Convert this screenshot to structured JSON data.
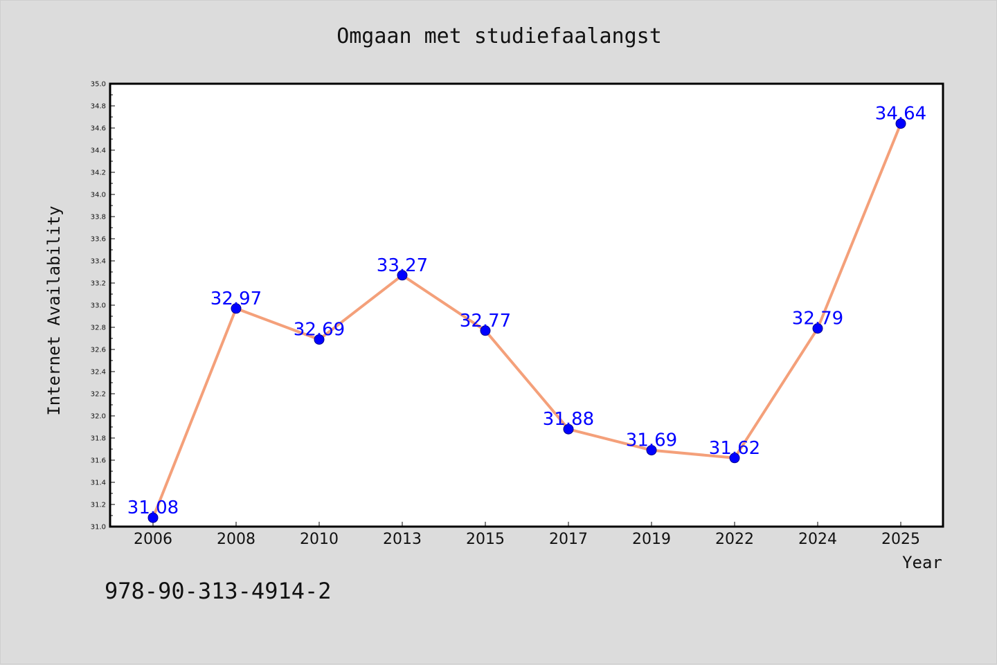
{
  "chart_data": {
    "type": "line",
    "title": "Omgaan met studiefaalangst",
    "xlabel": "Year",
    "ylabel": "Internet Availability",
    "categories": [
      "2006",
      "2008",
      "2010",
      "2013",
      "2015",
      "2017",
      "2019",
      "2022",
      "2024",
      "2025"
    ],
    "series": [
      {
        "values": [
          31.08,
          32.97,
          32.69,
          33.27,
          32.77,
          31.88,
          31.69,
          31.62,
          32.79,
          34.64
        ],
        "labels": [
          "31.08",
          "32.97",
          "32.69",
          "33.27",
          "32.77",
          "31.88",
          "31.69",
          "31.62",
          "32.79",
          "34.64"
        ]
      }
    ],
    "ylim": [
      31.0,
      35.0
    ],
    "yticks": [
      "31.0",
      "31.2",
      "31.4",
      "31.6",
      "31.8",
      "32.0",
      "32.2",
      "32.4",
      "32.6",
      "32.8",
      "33.0",
      "33.2",
      "33.4",
      "33.6",
      "33.8",
      "34.0",
      "34.2",
      "34.4",
      "34.6",
      "34.8",
      "35.0"
    ],
    "grid": false,
    "line_color": "#f4a07a",
    "marker_color": "#0000ff",
    "label_color": "#0000ff",
    "background": "#dcdcdc",
    "plot_background": "#ffffff"
  },
  "footer": {
    "isbn": "978-90-313-4914-2"
  }
}
